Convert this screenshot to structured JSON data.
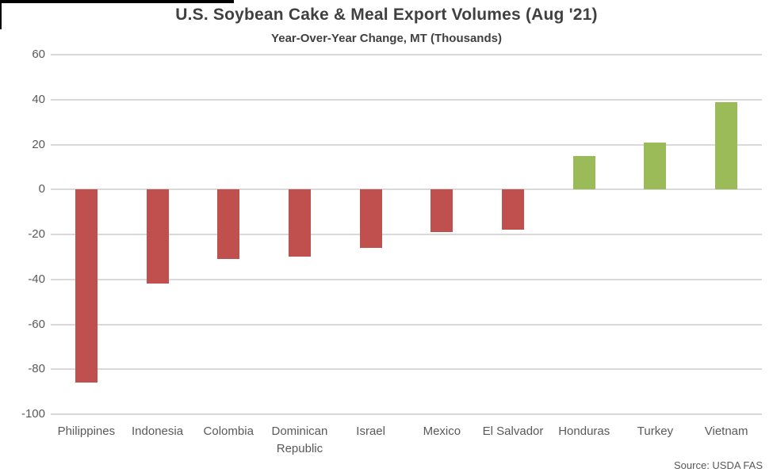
{
  "colors": {
    "negative_bar": "#C0504D",
    "positive_bar": "#9BBB59",
    "gridline": "#D9D9D9",
    "axis_text": "#595959",
    "title_text": "#404040"
  },
  "chart_data": {
    "type": "bar",
    "title": "U.S. Soybean Cake & Meal Export Volumes (Aug '21)",
    "subtitle": "Year-Over-Year Change, MT (Thousands)",
    "source": "Source: USDA FAS",
    "categories": [
      "Philippines",
      "Indonesia",
      "Colombia",
      "Dominican Republic",
      "Israel",
      "Mexico",
      "El Salvador",
      "Honduras",
      "Turkey",
      "Vietnam"
    ],
    "values": [
      -86,
      -42,
      -31,
      -30,
      -26,
      -19,
      -18,
      15,
      21,
      39
    ],
    "xlabel": "",
    "ylabel": "",
    "ylim": [
      -100,
      60
    ],
    "ytick_step": 20,
    "ytick_labels": [
      "60",
      "40",
      "20",
      "0",
      "-20",
      "-40",
      "-60",
      "-80",
      "-100"
    ],
    "grid": true,
    "legend": "none",
    "bar_color_rule": "negative values red, positive values green"
  }
}
